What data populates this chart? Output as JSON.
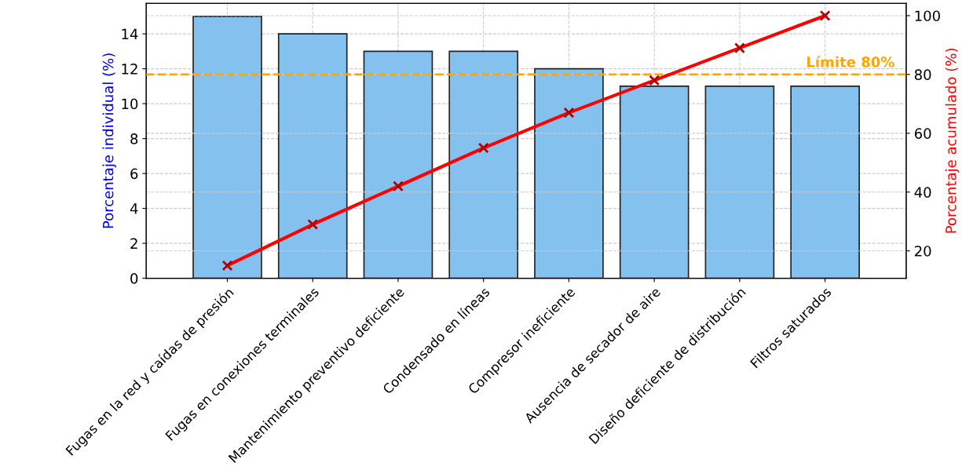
{
  "chart_data": {
    "type": "bar",
    "categories": [
      "Fugas en la red y caídas de presión",
      "Fugas en conexiones terminales",
      "Mantenimiento preventivo deficiente",
      "Condensado en líneas",
      "Compresor ineficiente",
      "Ausencia de secador de aire",
      "Diseño deficiente de distribución",
      "Filtros saturados"
    ],
    "series": [
      {
        "color": "#85c1ee",
        "values": [
          15,
          14,
          13,
          13,
          12,
          11,
          11,
          11
        ]
      },
      {
        "type": "line",
        "axis": "y2",
        "color": "#ff0000",
        "marker": "cross",
        "line_style": "solid",
        "values": [
          15,
          29,
          42,
          55,
          67,
          78,
          89,
          100
        ]
      }
    ],
    "ylabel": "Porcentaje individual (%)",
    "y2label": "Porcentaje acumulado (%)",
    "ylim": [
      0,
      15.75
    ],
    "yticks": [
      0,
      2,
      4,
      6,
      8,
      10,
      12,
      14
    ],
    "y2lim": [
      10.7,
      104.2
    ],
    "y2ticks": [
      20,
      40,
      60,
      80,
      100
    ],
    "ref_lines": [
      {
        "axis": "y2",
        "value": 80,
        "label": "Límite 80%",
        "color": "#ffa500",
        "line_style": "dashed"
      }
    ],
    "grid": true
  }
}
